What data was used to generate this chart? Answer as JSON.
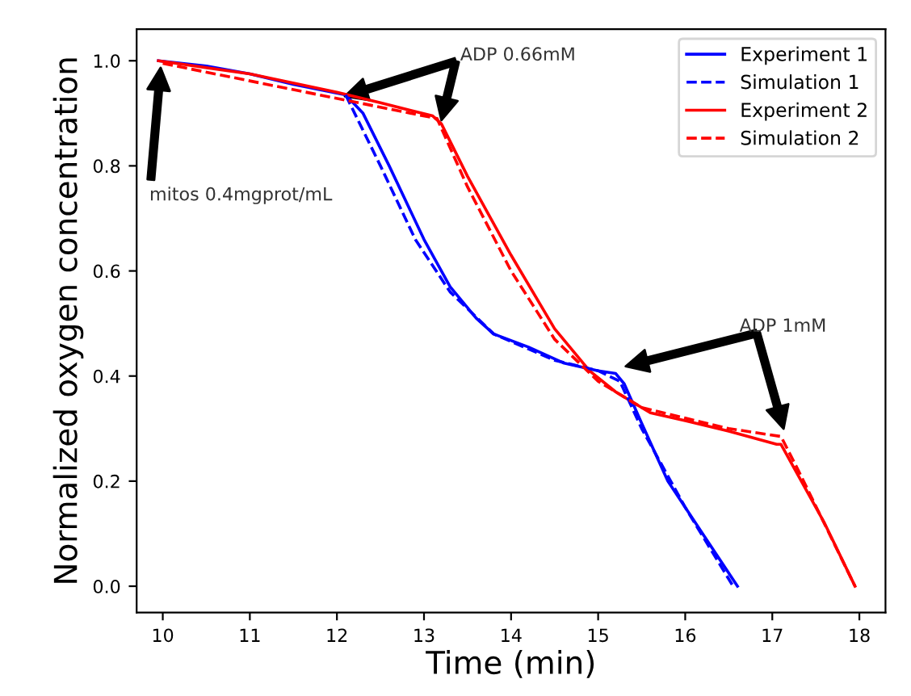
{
  "chart_data": {
    "type": "line",
    "xlabel": "Time (min)",
    "ylabel": "Normalized oxygen concentration",
    "xlim": [
      9.7,
      18.3
    ],
    "xticks": [
      10,
      11,
      12,
      13,
      14,
      15,
      16,
      17,
      18
    ],
    "ylim": [
      -0.05,
      1.06
    ],
    "yticks": [
      {
        "value": 0,
        "label": "0.0"
      },
      0.2,
      0.4,
      0.6,
      0.8,
      {
        "value": 1,
        "label": "1.0"
      }
    ],
    "legend": "top right",
    "grid": false,
    "series": [
      {
        "name": "Experiment 1",
        "color": "#0000ff",
        "line_style": "solid",
        "x": [
          9.95,
          10.5,
          11,
          11.5,
          12.1,
          12.3,
          12.6,
          13,
          13.3,
          13.6,
          13.8,
          14.2,
          14.6,
          15.0,
          15.2,
          15.3,
          15.5,
          15.8,
          16.2,
          16.6
        ],
        "values": [
          1.0,
          0.99,
          0.975,
          0.955,
          0.935,
          0.9,
          0.8,
          0.66,
          0.57,
          0.51,
          0.48,
          0.455,
          0.425,
          0.41,
          0.405,
          0.385,
          0.31,
          0.2,
          0.1,
          0.0
        ]
      },
      {
        "name": "Simulation 1",
        "color": "#0000ff",
        "line_style": "dashed",
        "x": [
          12.1,
          12.5,
          12.9,
          13.3,
          13.8,
          14.5,
          15.0,
          15.25,
          15.5,
          16.0,
          16.55
        ],
        "values": [
          0.935,
          0.8,
          0.66,
          0.56,
          0.48,
          0.43,
          0.41,
          0.39,
          0.3,
          0.15,
          0.0
        ]
      },
      {
        "name": "Experiment 2",
        "color": "#ff0000",
        "line_style": "solid",
        "x": [
          9.95,
          11,
          12,
          12.5,
          13.1,
          13.2,
          13.5,
          14,
          14.5,
          14.9,
          15.2,
          15.6,
          16,
          16.5,
          17.05,
          17.1,
          17.3,
          17.6,
          17.95
        ],
        "values": [
          1.0,
          0.975,
          0.94,
          0.92,
          0.895,
          0.88,
          0.78,
          0.63,
          0.49,
          0.41,
          0.37,
          0.33,
          0.315,
          0.295,
          0.27,
          0.27,
          0.21,
          0.12,
          0.0
        ]
      },
      {
        "name": "Simulation 2",
        "color": "#ff0000",
        "line_style": "dashed",
        "x": [
          10,
          13.15,
          13.5,
          14,
          14.5,
          15,
          15.5,
          16,
          16.5,
          17.1,
          17.3,
          17.95
        ],
        "values": [
          0.995,
          0.89,
          0.76,
          0.6,
          0.47,
          0.39,
          0.34,
          0.32,
          0.3,
          0.285,
          0.22,
          0.0
        ]
      }
    ],
    "annotations": [
      "mitos 0.4mgprot/mL",
      "ADP 0.66mM",
      "ADP 1mM"
    ]
  }
}
